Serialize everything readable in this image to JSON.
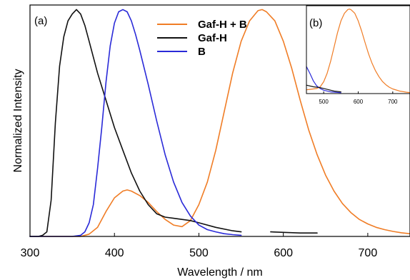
{
  "chart_data": [
    {
      "panel": "(a)",
      "type": "line",
      "xlabel": "Wavelength / nm",
      "ylabel": "Normalized Intensity",
      "xlim": [
        300,
        750
      ],
      "ylim": [
        0,
        1.02
      ],
      "xticks": [
        300,
        400,
        500,
        600,
        700
      ],
      "grid": false,
      "legend_position": "top-center",
      "series": [
        {
          "name": "Gaf-H + B",
          "color": "#f07d26",
          "x": [
            300,
            340,
            360,
            370,
            380,
            390,
            400,
            410,
            415,
            420,
            430,
            440,
            450,
            460,
            470,
            480,
            490,
            500,
            510,
            520,
            530,
            540,
            550,
            560,
            570,
            575,
            580,
            590,
            600,
            610,
            620,
            630,
            640,
            650,
            660,
            670,
            680,
            690,
            700,
            710,
            720,
            730,
            740,
            750
          ],
          "y": [
            0.0,
            0.0,
            0.0,
            0.01,
            0.04,
            0.11,
            0.17,
            0.2,
            0.205,
            0.2,
            0.18,
            0.15,
            0.11,
            0.075,
            0.05,
            0.043,
            0.07,
            0.14,
            0.24,
            0.38,
            0.55,
            0.72,
            0.86,
            0.95,
            0.995,
            1.0,
            0.99,
            0.95,
            0.86,
            0.74,
            0.6,
            0.47,
            0.36,
            0.27,
            0.2,
            0.145,
            0.105,
            0.075,
            0.055,
            0.04,
            0.03,
            0.022,
            0.016,
            0.012
          ]
        },
        {
          "name": "Gaf-H",
          "color": "#111111",
          "x": [
            300,
            310,
            315,
            320,
            325,
            330,
            335,
            340,
            345,
            350,
            355,
            360,
            365,
            370,
            375,
            380,
            390,
            400,
            410,
            420,
            430,
            440,
            450,
            460,
            470,
            480,
            490,
            500,
            520,
            540,
            550
          ],
          "y": [
            0.0,
            0.0,
            0.005,
            0.02,
            0.16,
            0.5,
            0.75,
            0.88,
            0.95,
            0.98,
            1.0,
            0.98,
            0.93,
            0.86,
            0.79,
            0.72,
            0.6,
            0.48,
            0.38,
            0.28,
            0.2,
            0.14,
            0.1,
            0.085,
            0.08,
            0.075,
            0.07,
            0.06,
            0.04,
            0.025,
            0.02
          ]
        },
        {
          "name": "Gaf-H",
          "color": "#111111",
          "x": [
            585,
            600,
            620,
            640
          ],
          "y": [
            0.02,
            0.018,
            0.015,
            0.015
          ]
        },
        {
          "name": "B",
          "color": "#2a2ad8",
          "x": [
            300,
            350,
            360,
            365,
            370,
            375,
            380,
            385,
            390,
            395,
            400,
            405,
            410,
            415,
            420,
            425,
            430,
            440,
            450,
            460,
            470,
            480,
            490,
            500,
            510,
            520,
            530,
            540,
            550
          ],
          "y": [
            0.0,
            0.0,
            0.005,
            0.02,
            0.06,
            0.14,
            0.3,
            0.48,
            0.68,
            0.84,
            0.94,
            0.99,
            1.0,
            0.99,
            0.95,
            0.89,
            0.82,
            0.67,
            0.51,
            0.36,
            0.24,
            0.15,
            0.09,
            0.05,
            0.03,
            0.02,
            0.012,
            0.008,
            0.005
          ]
        }
      ]
    },
    {
      "panel": "(b)",
      "type": "line",
      "xlim": [
        450,
        750
      ],
      "ylim": [
        0,
        1.04
      ],
      "xticks": [
        500,
        600,
        700
      ],
      "series": [
        {
          "name": "Gaf-H + B",
          "color": "#f07d26",
          "x": [
            450,
            460,
            470,
            480,
            490,
            500,
            510,
            520,
            530,
            540,
            550,
            560,
            570,
            575,
            580,
            590,
            600,
            610,
            620,
            630,
            640,
            650,
            660,
            670,
            680,
            690,
            700,
            720,
            740,
            750
          ],
          "y": [
            0.045,
            0.05,
            0.055,
            0.06,
            0.08,
            0.14,
            0.24,
            0.38,
            0.55,
            0.72,
            0.86,
            0.95,
            0.995,
            1.0,
            0.99,
            0.95,
            0.86,
            0.74,
            0.6,
            0.47,
            0.36,
            0.27,
            0.2,
            0.145,
            0.105,
            0.075,
            0.055,
            0.03,
            0.016,
            0.012
          ]
        },
        {
          "name": "B",
          "color": "#2a2ad8",
          "x": [
            450,
            460,
            470,
            480,
            490,
            500,
            520,
            550
          ],
          "y": [
            0.32,
            0.24,
            0.15,
            0.09,
            0.06,
            0.04,
            0.02,
            0.01
          ]
        },
        {
          "name": "Gaf-H",
          "color": "#111111",
          "x": [
            450,
            470,
            490,
            510,
            530,
            550
          ],
          "y": [
            0.1,
            0.08,
            0.07,
            0.05,
            0.03,
            0.02
          ]
        }
      ]
    }
  ]
}
